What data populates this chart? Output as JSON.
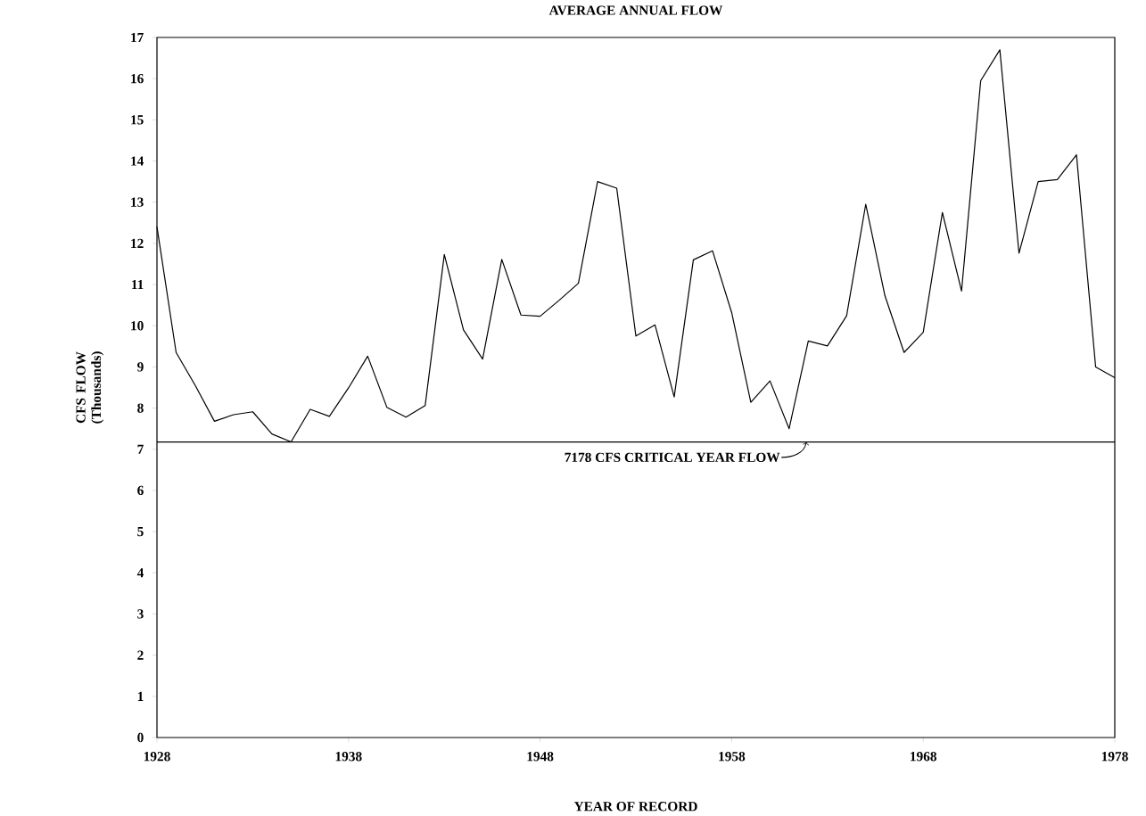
{
  "chart_data": {
    "type": "line",
    "title": "AVERAGE ANNUAL FLOW",
    "xlabel": "YEAR OF RECORD",
    "ylabel": "CFS FLOW (Thousands)",
    "x": [
      1928,
      1929,
      1930,
      1931,
      1932,
      1933,
      1934,
      1935,
      1936,
      1937,
      1938,
      1939,
      1940,
      1941,
      1942,
      1943,
      1944,
      1945,
      1946,
      1947,
      1948,
      1949,
      1950,
      1951,
      1952,
      1953,
      1954,
      1955,
      1956,
      1957,
      1958,
      1959,
      1960,
      1961,
      1962,
      1963,
      1964,
      1965,
      1966,
      1967,
      1968,
      1969,
      1970,
      1971,
      1972,
      1973,
      1974,
      1975,
      1976,
      1977,
      1978
    ],
    "values": [
      12.4,
      9.35,
      8.55,
      7.68,
      7.84,
      7.91,
      7.37,
      7.18,
      7.97,
      7.8,
      8.49,
      9.26,
      8.02,
      7.78,
      8.06,
      11.73,
      9.9,
      9.19,
      11.61,
      10.26,
      10.23,
      10.62,
      11.03,
      13.5,
      13.34,
      9.75,
      10.02,
      8.27,
      11.6,
      11.82,
      10.32,
      8.14,
      8.66,
      7.5,
      9.63,
      9.51,
      10.24,
      12.95,
      10.73,
      9.35,
      9.84,
      12.75,
      10.84,
      15.95,
      16.7,
      11.76,
      13.5,
      13.55,
      14.15,
      9.0,
      8.74
    ],
    "color": "#000000",
    "xlim": [
      1928,
      1978
    ],
    "xticks": [
      1928,
      1938,
      1948,
      1958,
      1968,
      1978
    ],
    "ylim": [
      0,
      17
    ],
    "yticks": [
      0,
      1,
      2,
      3,
      4,
      5,
      6,
      7,
      8,
      9,
      10,
      11,
      12,
      13,
      14,
      15,
      16,
      17
    ],
    "ref_lines": [
      {
        "axis": "y",
        "value": 7.178,
        "label": "7178 CFS CRITICAL YEAR FLOW",
        "color": "#000000"
      }
    ]
  }
}
